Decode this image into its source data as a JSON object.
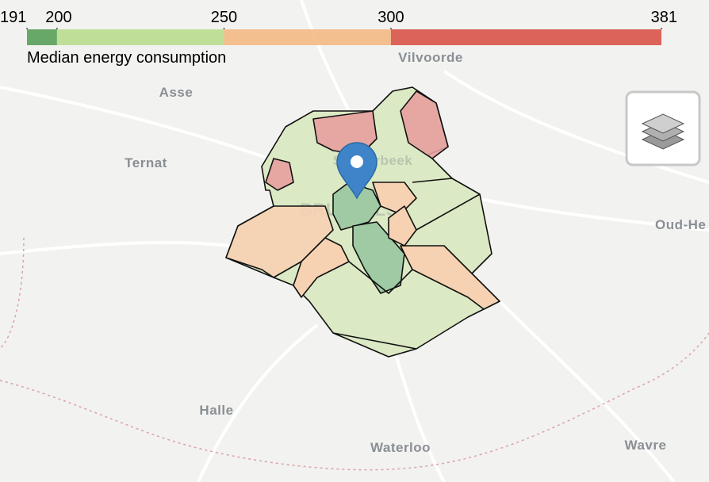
{
  "legend": {
    "caption": "Median energy consumption",
    "ticks": [
      191,
      200,
      250,
      300,
      381
    ],
    "colors": [
      "#4f9a4f",
      "#b6dc88",
      "#f4b67c",
      "#d84a3e"
    ]
  },
  "map_labels": [
    "Vilvoorde",
    "Asse",
    "Ternat",
    "Oud-He",
    "Halle",
    "Waterloo",
    "Wavre",
    "BRUSSELS",
    "Schaerbeek"
  ]
}
